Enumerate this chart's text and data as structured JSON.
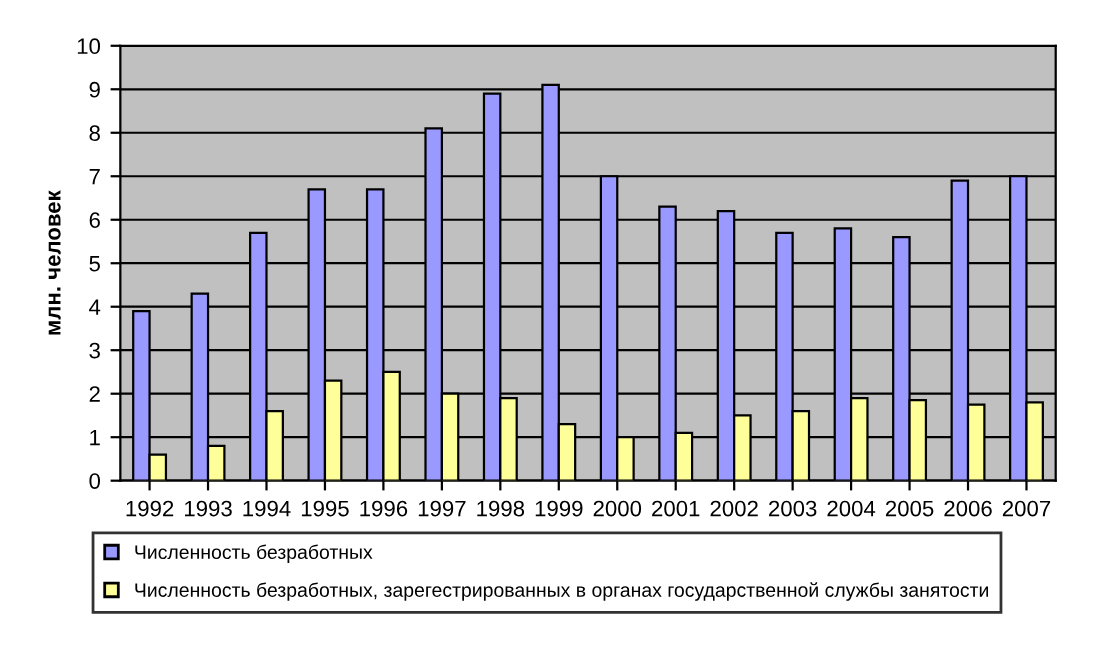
{
  "chart_data": {
    "type": "bar",
    "ylabel": "млн. человек",
    "categories": [
      "1992",
      "1993",
      "1994",
      "1995",
      "1996",
      "1997",
      "1998",
      "1999",
      "2000",
      "2001",
      "2002",
      "2003",
      "2004",
      "2005",
      "2006",
      "2007"
    ],
    "series": [
      {
        "name": "Численность безработных",
        "color": "#9999ff",
        "values": [
          3.9,
          4.3,
          5.7,
          6.7,
          6.7,
          8.1,
          8.9,
          9.1,
          7.0,
          6.3,
          6.2,
          5.7,
          5.8,
          5.6,
          6.9,
          7.0
        ]
      },
      {
        "name": "Численность безработных, зарегестрированных в органах государственной службы занятости",
        "color": "#ffff99",
        "values": [
          0.6,
          0.8,
          1.6,
          2.3,
          2.5,
          2.0,
          1.9,
          1.3,
          1.0,
          1.1,
          1.5,
          1.6,
          1.9,
          1.85,
          1.75,
          1.8
        ]
      }
    ],
    "ylim": [
      0,
      10
    ],
    "yticks": [
      0,
      1,
      2,
      3,
      4,
      5,
      6,
      7,
      8,
      9,
      10
    ],
    "grid": "y",
    "legend": "bottom"
  }
}
